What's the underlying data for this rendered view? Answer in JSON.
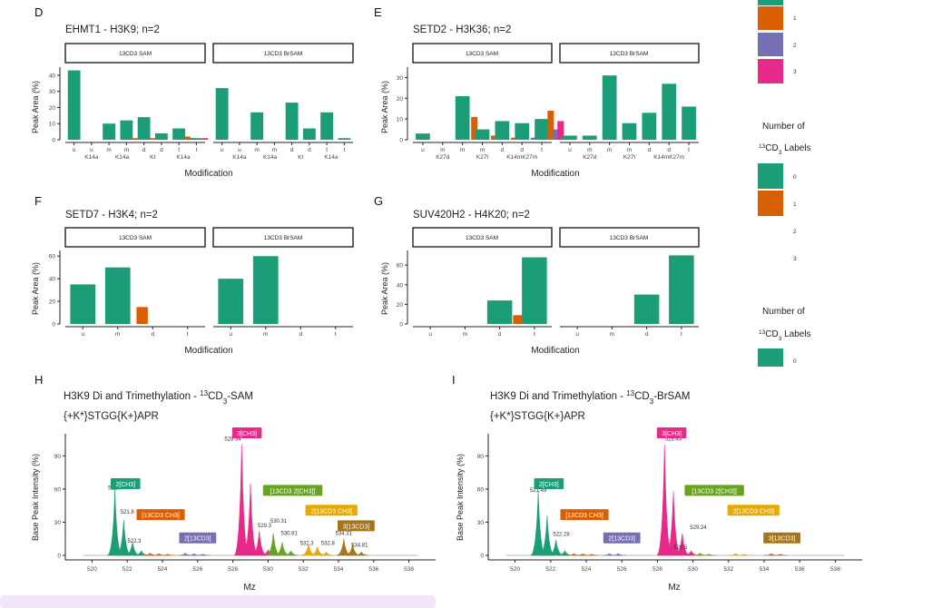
{
  "colors": {
    "n0": "#1b9e77",
    "n1": "#d95f02",
    "n2": "#7570b3",
    "n3": "#e7298a",
    "n4": "#66a61e",
    "n5": "#e6ab02",
    "n6": "#a6761d",
    "gray": "#bbbbbb"
  },
  "legend_top": {
    "labels": [
      "1",
      "2",
      "3"
    ]
  },
  "legend_mid": {
    "title_l1": "Number of",
    "title_l2": "13CD3 Labels",
    "labels": [
      "0",
      "1",
      "2",
      "3"
    ]
  },
  "legend_bot": {
    "title_l1": "Number of",
    "title_l2": "13CD3 Labels",
    "labels": [
      "0"
    ]
  },
  "chart_data": [
    {
      "id": "D",
      "type": "bar",
      "letter": "D",
      "title": "EHMT1 - H3K9; n=2",
      "facets": [
        "13CD3 SAM",
        "13CD3 BrSAM"
      ],
      "xticks_top": [
        "u",
        "u",
        "m",
        "m",
        "d",
        "d",
        "t",
        "t"
      ],
      "xticks_bot": [
        "K14a",
        "K14a",
        "Kt",
        "K14a"
      ],
      "xlabel": "Modification",
      "ylabel": "Peak Area (%)",
      "yticks": [
        0,
        10,
        20,
        30,
        40
      ],
      "ylim": [
        0,
        45
      ],
      "bars": [
        [
          {
            "x": 0,
            "v": 43,
            "c": "n0"
          },
          {
            "x": 2,
            "v": 10,
            "c": "n0"
          },
          {
            "x": 3,
            "v": 12,
            "c": "n0"
          },
          {
            "x": 3.3,
            "v": 1,
            "c": "n1"
          },
          {
            "x": 4,
            "v": 14,
            "c": "n0"
          },
          {
            "x": 4.3,
            "v": 1,
            "c": "n1"
          },
          {
            "x": 5,
            "v": 4,
            "c": "n0"
          },
          {
            "x": 6,
            "v": 7,
            "c": "n0"
          },
          {
            "x": 6.3,
            "v": 2,
            "c": "n1"
          },
          {
            "x": 6.6,
            "v": 1,
            "c": "n2"
          },
          {
            "x": 7,
            "v": 1,
            "c": "n0"
          },
          {
            "x": 7.3,
            "v": 1,
            "c": "n3"
          }
        ],
        [
          {
            "x": 0,
            "v": 32,
            "c": "n0"
          },
          {
            "x": 2,
            "v": 17,
            "c": "n0"
          },
          {
            "x": 4,
            "v": 23,
            "c": "n0"
          },
          {
            "x": 5,
            "v": 7,
            "c": "n0"
          },
          {
            "x": 6,
            "v": 17,
            "c": "n0"
          },
          {
            "x": 7,
            "v": 1,
            "c": "n0"
          }
        ]
      ]
    },
    {
      "id": "E",
      "type": "bar",
      "letter": "E",
      "title": "SETD2 - H3K36; n=2",
      "facets": [
        "13CD3 SAM",
        "13CD3 BrSAM"
      ],
      "xticks_top": [
        "u",
        "m",
        "m",
        "m",
        "d",
        "d",
        "t"
      ],
      "xticks_bot": [
        "K27d",
        "K27t",
        "K14mK27m"
      ],
      "xlabel": "Modification",
      "ylabel": "Peak Area (%)",
      "yticks": [
        0,
        10,
        20,
        30
      ],
      "ylim": [
        0,
        35
      ],
      "bars": [
        [
          {
            "x": 0,
            "v": 3,
            "c": "n0"
          },
          {
            "x": 2,
            "v": 21,
            "c": "n0"
          },
          {
            "x": 2.4,
            "v": 11,
            "c": "n1"
          },
          {
            "x": 3,
            "v": 5,
            "c": "n0"
          },
          {
            "x": 3.4,
            "v": 2,
            "c": "n1"
          },
          {
            "x": 4,
            "v": 9,
            "c": "n0"
          },
          {
            "x": 4.4,
            "v": 1,
            "c": "n1"
          },
          {
            "x": 5,
            "v": 8,
            "c": "n0"
          },
          {
            "x": 5.4,
            "v": 1,
            "c": "n2"
          },
          {
            "x": 6,
            "v": 10,
            "c": "n0"
          },
          {
            "x": 6.25,
            "v": 14,
            "c": "n1"
          },
          {
            "x": 6.5,
            "v": 5,
            "c": "n2"
          },
          {
            "x": 6.75,
            "v": 9,
            "c": "n3"
          }
        ],
        [
          {
            "x": 0,
            "v": 2,
            "c": "n0"
          },
          {
            "x": 1,
            "v": 2,
            "c": "n0"
          },
          {
            "x": 2,
            "v": 31,
            "c": "n0"
          },
          {
            "x": 3,
            "v": 8,
            "c": "n0"
          },
          {
            "x": 4,
            "v": 13,
            "c": "n0"
          },
          {
            "x": 5,
            "v": 27,
            "c": "n0"
          },
          {
            "x": 6,
            "v": 16,
            "c": "n0"
          }
        ]
      ]
    },
    {
      "id": "F",
      "type": "bar",
      "letter": "F",
      "title": "SETD7 - H3K4; n=2",
      "facets": [
        "13CD3 SAM",
        "13CD3 BrSAM"
      ],
      "xticks_top": [
        "u",
        "m",
        "d",
        "t"
      ],
      "xticks_bot": [],
      "xlabel": "Modification",
      "ylabel": "Peak Area (%)",
      "yticks": [
        0,
        20,
        40,
        60
      ],
      "ylim": [
        0,
        65
      ],
      "bars": [
        [
          {
            "x": 0,
            "v": 35,
            "c": "n0"
          },
          {
            "x": 1,
            "v": 50,
            "c": "n0"
          },
          {
            "x": 1.5,
            "v": 15,
            "c": "n1"
          }
        ],
        [
          {
            "x": 0,
            "v": 40,
            "c": "n0"
          },
          {
            "x": 1,
            "v": 60,
            "c": "n0"
          }
        ]
      ]
    },
    {
      "id": "G",
      "type": "bar",
      "letter": "G",
      "title": "SUV420H2 - H4K20; n=2",
      "facets": [
        "13CD3 SAM",
        "13CD3 BrSAM"
      ],
      "xticks_top": [
        "u",
        "m",
        "d",
        "t"
      ],
      "xticks_bot": [],
      "xlabel": "Modification",
      "ylabel": "Peak Area (%)",
      "yticks": [
        0,
        20,
        40,
        60
      ],
      "ylim": [
        0,
        75
      ],
      "bars": [
        [
          {
            "x": 2,
            "v": 24,
            "c": "n0"
          },
          {
            "x": 2.35,
            "v": 9,
            "c": "n1"
          },
          {
            "x": 3,
            "v": 68,
            "c": "n0"
          }
        ],
        [
          {
            "x": 2,
            "v": 30,
            "c": "n0"
          },
          {
            "x": 3,
            "v": 70,
            "c": "n0"
          }
        ]
      ]
    },
    {
      "id": "H",
      "type": "area",
      "letter": "H",
      "title": "H3K9 Di and Trimethylation - 13CD3-SAM",
      "subtitle": "{+K*}STGG{K+}APR",
      "xlabel": "Mz",
      "ylabel": "Base Peak Intensity (%)",
      "xlim": [
        519,
        539
      ],
      "ylim": [
        0,
        110
      ],
      "xticks": [
        520,
        522,
        524,
        526,
        528,
        530,
        532,
        534,
        536,
        538
      ],
      "yticks": [
        0,
        30,
        60,
        90
      ],
      "peaks": [
        {
          "mz": 521.3,
          "h": 60,
          "c": "n0"
        },
        {
          "mz": 521.8,
          "h": 32,
          "c": "n0"
        },
        {
          "mz": 522.3,
          "h": 12,
          "c": "n0"
        },
        {
          "mz": 522.8,
          "h": 4,
          "c": "n0"
        },
        {
          "mz": 523.3,
          "h": 2,
          "c": "n1"
        },
        {
          "mz": 523.8,
          "h": 1.5,
          "c": "n1"
        },
        {
          "mz": 524.3,
          "h": 1,
          "c": "n1"
        },
        {
          "mz": 525.3,
          "h": 2,
          "c": "n2"
        },
        {
          "mz": 525.8,
          "h": 1.5,
          "c": "n2"
        },
        {
          "mz": 526.3,
          "h": 1,
          "c": "n2"
        },
        {
          "mz": 528.5,
          "h": 100,
          "c": "n3"
        },
        {
          "mz": 529.0,
          "h": 65,
          "c": "n3"
        },
        {
          "mz": 529.5,
          "h": 22,
          "c": "n3"
        },
        {
          "mz": 530.0,
          "h": 5,
          "c": "n3"
        },
        {
          "mz": 530.3,
          "h": 20,
          "c": "n4"
        },
        {
          "mz": 530.8,
          "h": 12,
          "c": "n4"
        },
        {
          "mz": 531.3,
          "h": 4,
          "c": "n4"
        },
        {
          "mz": 532.3,
          "h": 10,
          "c": "n5"
        },
        {
          "mz": 532.8,
          "h": 8,
          "c": "n5"
        },
        {
          "mz": 533.3,
          "h": 3,
          "c": "n5"
        },
        {
          "mz": 534.3,
          "h": 15,
          "c": "n6"
        },
        {
          "mz": 534.8,
          "h": 10,
          "c": "n6"
        },
        {
          "mz": 535.3,
          "h": 3,
          "c": "n6"
        }
      ],
      "peak_labels": [
        {
          "mz": 521.3,
          "y": 58,
          "text": "521.3"
        },
        {
          "mz": 522.0,
          "y": 36,
          "text": "521.8"
        },
        {
          "mz": 522.4,
          "y": 10,
          "text": "522.3"
        },
        {
          "mz": 528.0,
          "y": 102,
          "text": "528.54"
        },
        {
          "mz": 529.8,
          "y": 24,
          "text": "529.3"
        },
        {
          "mz": 530.6,
          "y": 28,
          "text": "530.31"
        },
        {
          "mz": 531.2,
          "y": 17,
          "text": "530.81"
        },
        {
          "mz": 532.2,
          "y": 8,
          "text": "532.3"
        },
        {
          "mz": 533.4,
          "y": 8,
          "text": "532.8"
        },
        {
          "mz": 534.3,
          "y": 17,
          "text": "534.31"
        },
        {
          "mz": 535.2,
          "y": 6,
          "text": "534.81"
        }
      ],
      "tags": [
        {
          "mz": 521.9,
          "y": 64,
          "text": "2[CH3]",
          "c": "n0"
        },
        {
          "mz": 523.9,
          "y": 36,
          "text": "[13CD3 CH3]",
          "c": "n1"
        },
        {
          "mz": 526.0,
          "y": 15,
          "text": "2[13CD3]",
          "c": "n2"
        },
        {
          "mz": 528.8,
          "y": 110,
          "text": "3[CH3]",
          "c": "n3"
        },
        {
          "mz": 531.4,
          "y": 58,
          "text": "[13CD3 2[CH3]]",
          "c": "n4"
        },
        {
          "mz": 533.6,
          "y": 40,
          "text": "2[13CD3 CH3]",
          "c": "n5"
        },
        {
          "mz": 535.0,
          "y": 26,
          "text": "3[13CD3]",
          "c": "n6"
        }
      ]
    },
    {
      "id": "I",
      "type": "area",
      "letter": "I",
      "title": "H3K9 Di and Trimethylation - 13CD3-BrSAM",
      "subtitle": "{+K*}STGG{K+}APR",
      "xlabel": "Mz",
      "ylabel": "Base Peak Intensity (%)",
      "xlim": [
        519,
        539
      ],
      "ylim": [
        0,
        110
      ],
      "xticks": [
        520,
        522,
        524,
        526,
        528,
        530,
        532,
        534,
        536,
        538
      ],
      "yticks": [
        0,
        30,
        60,
        90
      ],
      "peaks": [
        {
          "mz": 521.3,
          "h": 58,
          "c": "n0"
        },
        {
          "mz": 521.8,
          "h": 36,
          "c": "n0"
        },
        {
          "mz": 522.3,
          "h": 14,
          "c": "n0"
        },
        {
          "mz": 522.8,
          "h": 4,
          "c": "n0"
        },
        {
          "mz": 523.3,
          "h": 1.5,
          "c": "n1"
        },
        {
          "mz": 523.8,
          "h": 1.5,
          "c": "n1"
        },
        {
          "mz": 524.3,
          "h": 1,
          "c": "n1"
        },
        {
          "mz": 525.3,
          "h": 1.5,
          "c": "n2"
        },
        {
          "mz": 525.8,
          "h": 1.5,
          "c": "n2"
        },
        {
          "mz": 528.4,
          "h": 100,
          "c": "n3"
        },
        {
          "mz": 528.9,
          "h": 58,
          "c": "n3"
        },
        {
          "mz": 529.4,
          "h": 20,
          "c": "n3"
        },
        {
          "mz": 529.9,
          "h": 4,
          "c": "n3"
        },
        {
          "mz": 530.4,
          "h": 2,
          "c": "n4"
        },
        {
          "mz": 530.9,
          "h": 1,
          "c": "n4"
        },
        {
          "mz": 532.4,
          "h": 1.5,
          "c": "n5"
        },
        {
          "mz": 532.9,
          "h": 1,
          "c": "n5"
        },
        {
          "mz": 534.4,
          "h": 1.5,
          "c": "n6"
        },
        {
          "mz": 534.9,
          "h": 1,
          "c": "n6"
        }
      ],
      "peak_labels": [
        {
          "mz": 521.3,
          "y": 56,
          "text": "521.49"
        },
        {
          "mz": 522.6,
          "y": 16,
          "text": "522.28"
        },
        {
          "mz": 528.9,
          "y": 102,
          "text": "528.43"
        },
        {
          "mz": 530.3,
          "y": 22,
          "text": "529.24"
        },
        {
          "mz": 529.3,
          "y": 4,
          "text": "529.5"
        }
      ],
      "tags": [
        {
          "mz": 521.9,
          "y": 64,
          "text": "2[CH3]",
          "c": "n0"
        },
        {
          "mz": 523.9,
          "y": 36,
          "text": "[13CD3 CH3]",
          "c": "n1"
        },
        {
          "mz": 526.0,
          "y": 15,
          "text": "2[13CD3]",
          "c": "n2"
        },
        {
          "mz": 528.8,
          "y": 110,
          "text": "3[CH3]",
          "c": "n3"
        },
        {
          "mz": 531.2,
          "y": 58,
          "text": "[13CD3 2[CH3]]",
          "c": "n4"
        },
        {
          "mz": 533.4,
          "y": 40,
          "text": "2[13CD3 CH3]",
          "c": "n5"
        },
        {
          "mz": 535.0,
          "y": 15,
          "text": "3[13CD3]",
          "c": "n6"
        }
      ]
    }
  ]
}
